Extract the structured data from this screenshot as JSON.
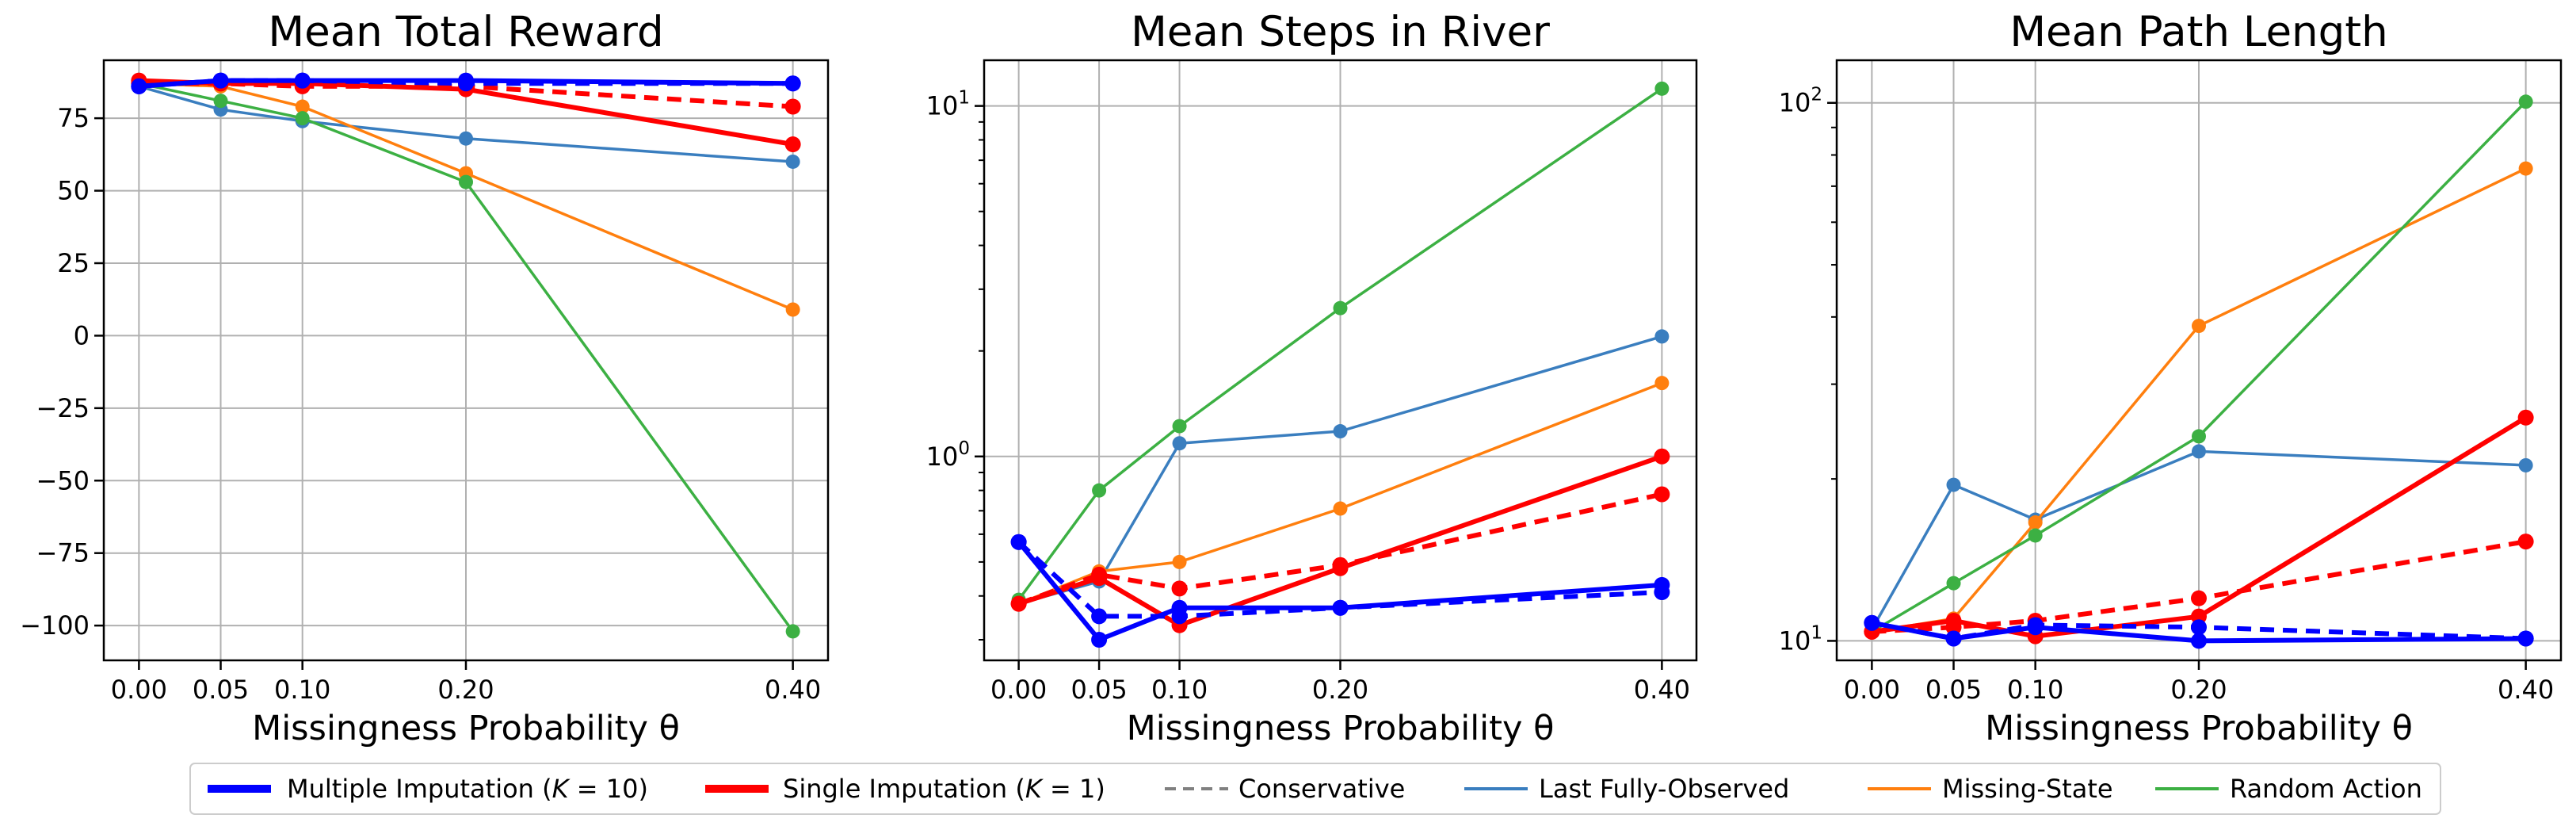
{
  "legend": {
    "entries": [
      {
        "label": "Multiple Imputation (K = 10)",
        "color": "#0000ff",
        "style": "solid-thick"
      },
      {
        "label": "Single Imputation (K = 1)",
        "color": "#ff0000",
        "style": "solid-thick"
      },
      {
        "label": "Conservative",
        "color": "#808080",
        "style": "dashed"
      },
      {
        "label": "Last Fully-Observed",
        "color": "#3a7ebf",
        "style": "solid"
      },
      {
        "label": "Missing-State",
        "color": "#ff7f0e",
        "style": "solid"
      },
      {
        "label": "Random Action",
        "color": "#3cb043",
        "style": "solid"
      }
    ]
  },
  "chart_data": [
    {
      "type": "line",
      "title": "Mean Total Reward",
      "xlabel": "Missingness Probability θ",
      "ylabel": "",
      "x": [
        0.0,
        0.05,
        0.1,
        0.2,
        0.4
      ],
      "x_tick_labels": [
        "0.00",
        "0.05",
        "0.10",
        "0.20",
        "0.40"
      ],
      "yscale": "linear",
      "ylim": [
        -112,
        95
      ],
      "y_ticks": [
        75,
        50,
        25,
        0,
        -25,
        -50,
        -75,
        -100
      ],
      "y_tick_labels": [
        "75",
        "50",
        "25",
        "0",
        "−25",
        "−50",
        "−75",
        "−100"
      ],
      "grid": true,
      "series": [
        {
          "name": "Last Fully-Observed",
          "color": "#3a7ebf",
          "dash": false,
          "width": "thin",
          "values": [
            86,
            78,
            74,
            68,
            60
          ]
        },
        {
          "name": "Missing-State",
          "color": "#ff7f0e",
          "dash": false,
          "width": "thin",
          "values": [
            87,
            86,
            79,
            56,
            9
          ]
        },
        {
          "name": "Random Action",
          "color": "#3cb043",
          "dash": false,
          "width": "thin",
          "values": [
            87,
            81,
            75,
            53,
            -102
          ]
        },
        {
          "name": "Single Imputation (K = 1), Conservative",
          "color": "#ff0000",
          "dash": true,
          "width": "thick",
          "values": [
            87,
            87,
            86,
            86,
            79
          ]
        },
        {
          "name": "Single Imputation (K = 1)",
          "color": "#ff0000",
          "dash": false,
          "width": "thick",
          "values": [
            88,
            87,
            87,
            85,
            66
          ]
        },
        {
          "name": "Multiple Imputation (K = 10), Conservative",
          "color": "#0000ff",
          "dash": true,
          "width": "thick",
          "values": [
            86,
            88,
            88,
            87,
            87
          ]
        },
        {
          "name": "Multiple Imputation (K = 10)",
          "color": "#0000ff",
          "dash": false,
          "width": "thick",
          "values": [
            86,
            88,
            88,
            88,
            87
          ]
        }
      ]
    },
    {
      "type": "line",
      "title": "Mean Steps in River",
      "xlabel": "Missingness Probability θ",
      "ylabel": "",
      "x": [
        0.0,
        0.05,
        0.1,
        0.2,
        0.4
      ],
      "x_tick_labels": [
        "0.00",
        "0.05",
        "0.10",
        "0.20",
        "0.40"
      ],
      "yscale": "log",
      "ylim": [
        0.262,
        13.5
      ],
      "y_ticks": [
        1,
        10
      ],
      "y_tick_labels": [
        "10^0",
        "10^1"
      ],
      "grid": true,
      "series": [
        {
          "name": "Last Fully-Observed",
          "color": "#3a7ebf",
          "dash": false,
          "width": "thin",
          "values": [
            0.38,
            0.44,
            1.09,
            1.18,
            2.2
          ]
        },
        {
          "name": "Missing-State",
          "color": "#ff7f0e",
          "dash": false,
          "width": "thin",
          "values": [
            0.38,
            0.47,
            0.5,
            0.71,
            1.62
          ]
        },
        {
          "name": "Random Action",
          "color": "#3cb043",
          "dash": false,
          "width": "thin",
          "values": [
            0.39,
            0.8,
            1.22,
            2.65,
            11.2
          ]
        },
        {
          "name": "Single Imputation (K = 1), Conservative",
          "color": "#ff0000",
          "dash": true,
          "width": "thick",
          "values": [
            0.38,
            0.46,
            0.42,
            0.49,
            0.78
          ]
        },
        {
          "name": "Single Imputation (K = 1)",
          "color": "#ff0000",
          "dash": false,
          "width": "thick",
          "values": [
            0.38,
            0.45,
            0.33,
            0.48,
            1.0
          ]
        },
        {
          "name": "Multiple Imputation (K = 10), Conservative",
          "color": "#0000ff",
          "dash": true,
          "width": "thick",
          "values": [
            0.57,
            0.35,
            0.35,
            0.37,
            0.41
          ]
        },
        {
          "name": "Multiple Imputation (K = 10)",
          "color": "#0000ff",
          "dash": false,
          "width": "thick",
          "values": [
            0.57,
            0.3,
            0.37,
            0.37,
            0.43
          ]
        }
      ]
    },
    {
      "type": "line",
      "title": "Mean Path Length",
      "xlabel": "Missingness Probability θ",
      "ylabel": "",
      "x": [
        0.0,
        0.05,
        0.1,
        0.2,
        0.4
      ],
      "x_tick_labels": [
        "0.00",
        "0.05",
        "0.10",
        "0.20",
        "0.40"
      ],
      "yscale": "log",
      "ylim": [
        9.2,
        120
      ],
      "y_ticks": [
        10,
        100
      ],
      "y_tick_labels": [
        "10^1",
        "10^2"
      ],
      "grid": true,
      "series": [
        {
          "name": "Last Fully-Observed",
          "color": "#3a7ebf",
          "dash": false,
          "width": "thin",
          "values": [
            10.5,
            19.5,
            16.8,
            22.5,
            21.2
          ]
        },
        {
          "name": "Missing-State",
          "color": "#ff7f0e",
          "dash": false,
          "width": "thin",
          "values": [
            10.4,
            11.0,
            16.6,
            38.5,
            75.5
          ]
        },
        {
          "name": "Random Action",
          "color": "#3cb043",
          "dash": false,
          "width": "thin",
          "values": [
            10.4,
            12.8,
            15.7,
            24.0,
            100.5
          ]
        },
        {
          "name": "Single Imputation (K = 1), Conservative",
          "color": "#ff0000",
          "dash": true,
          "width": "thick",
          "values": [
            10.4,
            10.6,
            10.9,
            12.0,
            15.3
          ]
        },
        {
          "name": "Single Imputation (K = 1)",
          "color": "#ff0000",
          "dash": false,
          "width": "thick",
          "values": [
            10.4,
            10.9,
            10.2,
            11.1,
            26.0
          ]
        },
        {
          "name": "Multiple Imputation (K = 10), Conservative",
          "color": "#0000ff",
          "dash": true,
          "width": "thick",
          "values": [
            10.8,
            10.1,
            10.7,
            10.6,
            10.1
          ]
        },
        {
          "name": "Multiple Imputation (K = 10)",
          "color": "#0000ff",
          "dash": false,
          "width": "thick",
          "values": [
            10.8,
            10.1,
            10.6,
            10.0,
            10.1
          ]
        }
      ]
    }
  ]
}
